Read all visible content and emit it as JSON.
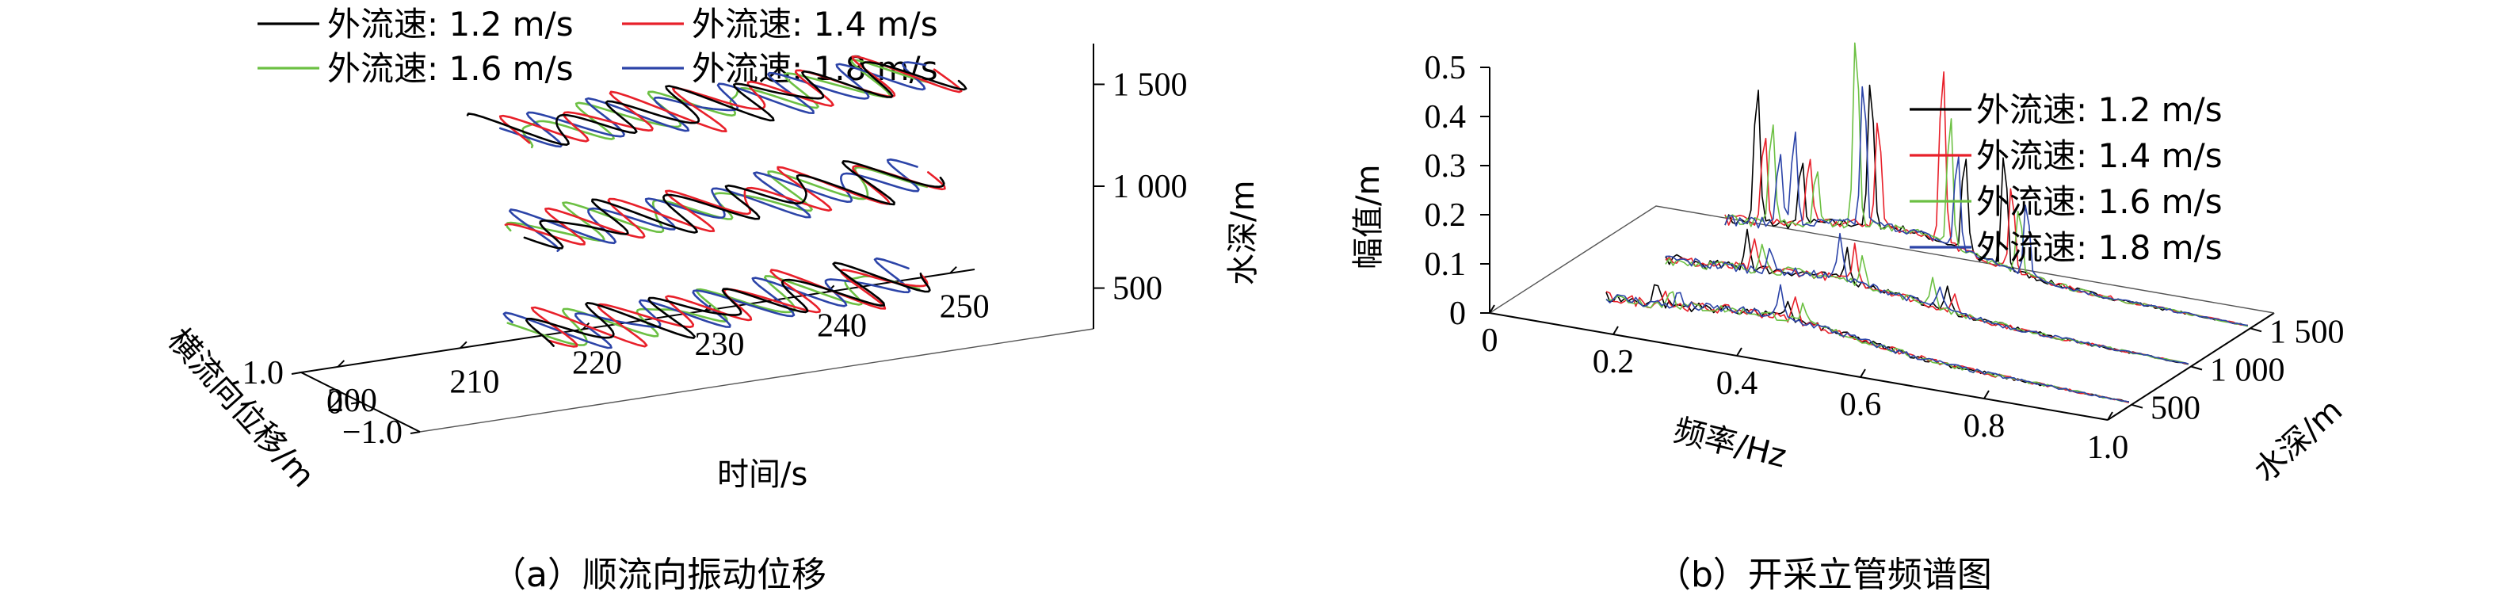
{
  "colors": {
    "s12": "#000000",
    "s14": "#e8202a",
    "s16": "#6cc043",
    "s18": "#2c44a8"
  },
  "chart_data": [
    {
      "panel": "a",
      "type": "line",
      "caption": "（a）顺流向振动位移",
      "xlabel": "时间/s",
      "ylabel": "横流向位移/m",
      "zlabel": "水深/m",
      "x_ticks": [
        "200",
        "210",
        "220",
        "230",
        "240",
        "250"
      ],
      "y_ticks": [
        "−1.0",
        "0",
        "1.0"
      ],
      "z_ticks": [
        "500",
        "1 000",
        "1 500"
      ],
      "xlim": [
        197,
        252
      ],
      "ylim": [
        -1.0,
        1.0
      ],
      "zlim": [
        300,
        1700
      ],
      "depths": [
        500,
        1000,
        1500
      ],
      "legend": [
        {
          "name": "外流速: 1.2 m/s",
          "color": "#000000"
        },
        {
          "name": "外流速: 1.4 m/s",
          "color": "#e8202a"
        },
        {
          "name": "外流速: 1.6 m/s",
          "color": "#6cc043"
        },
        {
          "name": "外流速: 1.8 m/s",
          "color": "#2c44a8"
        }
      ],
      "series": [
        {
          "name": "外流速: 1.2 m/s",
          "period_s": 5.2,
          "amplitude_m": 0.55
        },
        {
          "name": "外流速: 1.4 m/s",
          "period_s": 4.9,
          "amplitude_m": 0.6
        },
        {
          "name": "外流速: 1.6 m/s",
          "period_s": 5.6,
          "amplitude_m": 0.5
        },
        {
          "name": "外流速: 1.8 m/s",
          "period_s": 5.0,
          "amplitude_m": 0.55
        }
      ],
      "legend_position": "top-left"
    },
    {
      "panel": "b",
      "type": "line",
      "caption": "（b）开采立管频谱图",
      "xlabel": "频率/Hz",
      "ylabel": "幅值/m",
      "zlabel": "水深/m",
      "x_ticks": [
        "0",
        "0.2",
        "0.4",
        "0.6",
        "0.8",
        "1.0"
      ],
      "y_ticks": [
        "0",
        "0.1",
        "0.2",
        "0.3",
        "0.4",
        "0.5"
      ],
      "z_ticks": [
        "500",
        "1 000",
        "1 500"
      ],
      "xlim": [
        0,
        1.0
      ],
      "ylim": [
        0,
        0.5
      ],
      "depths": [
        500,
        1000,
        1500
      ],
      "legend": [
        {
          "name": "外流速: 1.2 m/s",
          "color": "#000000"
        },
        {
          "name": "外流速: 1.4 m/s",
          "color": "#e8202a"
        },
        {
          "name": "外流速: 1.6 m/s",
          "color": "#6cc043"
        },
        {
          "name": "外流速: 1.8 m/s",
          "color": "#2c44a8"
        }
      ],
      "peaks": [
        {
          "depth": 1500,
          "freq_hz": 0.22,
          "amp": 0.3
        },
        {
          "depth": 1500,
          "freq_hz": 0.28,
          "amp": 0.2
        },
        {
          "depth": 1500,
          "freq_hz": 0.38,
          "amp": 0.42
        },
        {
          "depth": 1500,
          "freq_hz": 0.52,
          "amp": 0.38
        },
        {
          "depth": 1500,
          "freq_hz": 0.62,
          "amp": 0.25
        }
      ],
      "legend_position": "top-right"
    }
  ]
}
